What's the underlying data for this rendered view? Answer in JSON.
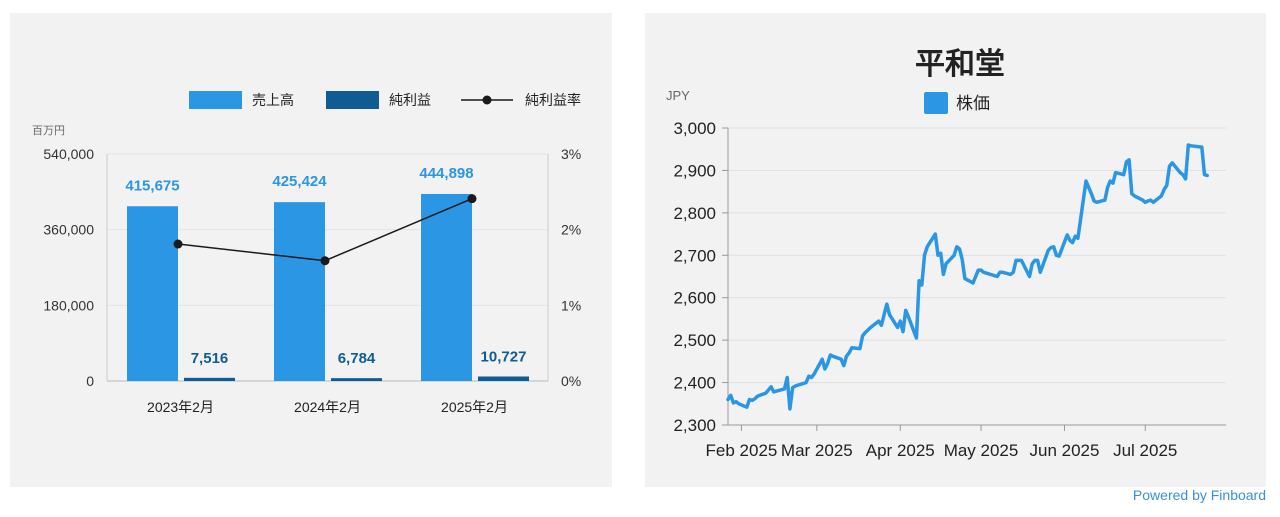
{
  "chart_data": [
    {
      "type": "bar",
      "categories": [
        "2023年2月",
        "2024年2月",
        "2025年2月"
      ],
      "series": [
        {
          "name": "売上高",
          "kind": "bar",
          "values": [
            415675,
            425424,
            444898
          ],
          "labels": [
            "415,675",
            "425,424",
            "444,898"
          ]
        },
        {
          "name": "純利益",
          "kind": "bar",
          "values": [
            7516,
            6784,
            10727
          ],
          "labels": [
            "7,516",
            "6,784",
            "10,727"
          ]
        },
        {
          "name": "純利益率",
          "kind": "line",
          "axis": "right",
          "values": [
            1.81,
            1.59,
            2.41
          ]
        }
      ],
      "unit_label": "百万円",
      "ylim": [
        0,
        540000
      ],
      "y_ticks": [
        "540,000",
        "360,000",
        "180,000",
        "0"
      ],
      "y_tick_values": [
        540000,
        360000,
        180000,
        0
      ],
      "y2lim": [
        0,
        3
      ],
      "y2_ticks": [
        "3%",
        "2%",
        "1%",
        "0%"
      ],
      "y2_tick_values": [
        3,
        2,
        1,
        0
      ],
      "legend_position": "top-right",
      "colors": {
        "sales": "#2b96e3",
        "profit": "#0f5c94",
        "ratio": "#1a1a1a"
      }
    },
    {
      "type": "line",
      "title": "平和堂",
      "ylabel": "JPY",
      "legend": "株価",
      "ylim": [
        2300,
        3000
      ],
      "y_ticks": [
        "3,000",
        "2,900",
        "2,800",
        "2,700",
        "2,600",
        "2,500",
        "2,400",
        "2,300"
      ],
      "y_tick_values": [
        3000,
        2900,
        2800,
        2700,
        2600,
        2500,
        2400,
        2300
      ],
      "x_ticks": [
        "Feb 2025",
        "Mar 2025",
        "Apr 2025",
        "May 2025",
        "Jun 2025",
        "Jul 2025"
      ],
      "x_tick_dates": [
        "2025-02-01",
        "2025-03-01",
        "2025-04-01",
        "2025-05-01",
        "2025-06-01",
        "2025-07-01"
      ],
      "xlim": [
        "2025-01-27",
        "2025-07-31"
      ],
      "color": "#2b96e3",
      "series": [
        {
          "name": "株価",
          "points": [
            [
              "2025-01-27",
              2360
            ],
            [
              "2025-01-28",
              2370
            ],
            [
              "2025-01-29",
              2352
            ],
            [
              "2025-01-30",
              2355
            ],
            [
              "2025-01-31",
              2350
            ],
            [
              "2025-02-03",
              2342
            ],
            [
              "2025-02-04",
              2360
            ],
            [
              "2025-02-05",
              2358
            ],
            [
              "2025-02-06",
              2362
            ],
            [
              "2025-02-07",
              2368
            ],
            [
              "2025-02-10",
              2375
            ],
            [
              "2025-02-12",
              2390
            ],
            [
              "2025-02-13",
              2378
            ],
            [
              "2025-02-14",
              2380
            ],
            [
              "2025-02-17",
              2385
            ],
            [
              "2025-02-18",
              2412
            ],
            [
              "2025-02-19",
              2338
            ],
            [
              "2025-02-20",
              2388
            ],
            [
              "2025-02-21",
              2392
            ],
            [
              "2025-02-25",
              2400
            ],
            [
              "2025-02-26",
              2415
            ],
            [
              "2025-02-27",
              2412
            ],
            [
              "2025-02-28",
              2420
            ],
            [
              "2025-03-03",
              2455
            ],
            [
              "2025-03-04",
              2432
            ],
            [
              "2025-03-05",
              2445
            ],
            [
              "2025-03-06",
              2465
            ],
            [
              "2025-03-07",
              2462
            ],
            [
              "2025-03-10",
              2455
            ],
            [
              "2025-03-11",
              2440
            ],
            [
              "2025-03-12",
              2462
            ],
            [
              "2025-03-13",
              2470
            ],
            [
              "2025-03-14",
              2482
            ],
            [
              "2025-03-17",
              2480
            ],
            [
              "2025-03-18",
              2510
            ],
            [
              "2025-03-19",
              2518
            ],
            [
              "2025-03-21",
              2530
            ],
            [
              "2025-03-24",
              2545
            ],
            [
              "2025-03-25",
              2535
            ],
            [
              "2025-03-26",
              2560
            ],
            [
              "2025-03-27",
              2585
            ],
            [
              "2025-03-28",
              2560
            ],
            [
              "2025-03-31",
              2530
            ],
            [
              "2025-04-01",
              2545
            ],
            [
              "2025-04-02",
              2520
            ],
            [
              "2025-04-03",
              2570
            ],
            [
              "2025-04-04",
              2555
            ],
            [
              "2025-04-07",
              2505
            ],
            [
              "2025-04-08",
              2640
            ],
            [
              "2025-04-09",
              2630
            ],
            [
              "2025-04-10",
              2700
            ],
            [
              "2025-04-11",
              2720
            ],
            [
              "2025-04-14",
              2750
            ],
            [
              "2025-04-15",
              2700
            ],
            [
              "2025-04-16",
              2705
            ],
            [
              "2025-04-17",
              2655
            ],
            [
              "2025-04-18",
              2680
            ],
            [
              "2025-04-21",
              2700
            ],
            [
              "2025-04-22",
              2720
            ],
            [
              "2025-04-23",
              2715
            ],
            [
              "2025-04-24",
              2690
            ],
            [
              "2025-04-25",
              2645
            ],
            [
              "2025-04-28",
              2635
            ],
            [
              "2025-04-30",
              2665
            ],
            [
              "2025-05-01",
              2665
            ],
            [
              "2025-05-02",
              2660
            ],
            [
              "2025-05-07",
              2650
            ],
            [
              "2025-05-08",
              2660
            ],
            [
              "2025-05-09",
              2660
            ],
            [
              "2025-05-12",
              2655
            ],
            [
              "2025-05-13",
              2660
            ],
            [
              "2025-05-14",
              2688
            ],
            [
              "2025-05-15",
              2688
            ],
            [
              "2025-05-16",
              2688
            ],
            [
              "2025-05-19",
              2650
            ],
            [
              "2025-05-20",
              2680
            ],
            [
              "2025-05-21",
              2688
            ],
            [
              "2025-05-22",
              2688
            ],
            [
              "2025-05-23",
              2660
            ],
            [
              "2025-05-26",
              2712
            ],
            [
              "2025-05-27",
              2718
            ],
            [
              "2025-05-28",
              2720
            ],
            [
              "2025-05-29",
              2700
            ],
            [
              "2025-05-30",
              2698
            ],
            [
              "2025-06-02",
              2748
            ],
            [
              "2025-06-03",
              2735
            ],
            [
              "2025-06-04",
              2730
            ],
            [
              "2025-06-05",
              2745
            ],
            [
              "2025-06-06",
              2740
            ],
            [
              "2025-06-09",
              2875
            ],
            [
              "2025-06-10",
              2860
            ],
            [
              "2025-06-11",
              2845
            ],
            [
              "2025-06-12",
              2828
            ],
            [
              "2025-06-13",
              2825
            ],
            [
              "2025-06-16",
              2830
            ],
            [
              "2025-06-17",
              2860
            ],
            [
              "2025-06-18",
              2875
            ],
            [
              "2025-06-19",
              2870
            ],
            [
              "2025-06-20",
              2895
            ],
            [
              "2025-06-23",
              2890
            ],
            [
              "2025-06-24",
              2920
            ],
            [
              "2025-06-25",
              2925
            ],
            [
              "2025-06-26",
              2845
            ],
            [
              "2025-06-27",
              2840
            ],
            [
              "2025-06-30",
              2830
            ],
            [
              "2025-07-01",
              2825
            ],
            [
              "2025-07-02",
              2828
            ],
            [
              "2025-07-03",
              2830
            ],
            [
              "2025-07-04",
              2825
            ],
            [
              "2025-07-07",
              2840
            ],
            [
              "2025-07-08",
              2855
            ],
            [
              "2025-07-09",
              2865
            ],
            [
              "2025-07-10",
              2910
            ],
            [
              "2025-07-11",
              2918
            ],
            [
              "2025-07-14",
              2895
            ],
            [
              "2025-07-15",
              2890
            ],
            [
              "2025-07-16",
              2880
            ],
            [
              "2025-07-17",
              2960
            ],
            [
              "2025-07-18",
              2958
            ],
            [
              "2025-07-22",
              2955
            ],
            [
              "2025-07-23",
              2890
            ],
            [
              "2025-07-24",
              2888
            ]
          ]
        }
      ]
    }
  ],
  "footer": {
    "powered_by": "Powered by Finboard"
  }
}
